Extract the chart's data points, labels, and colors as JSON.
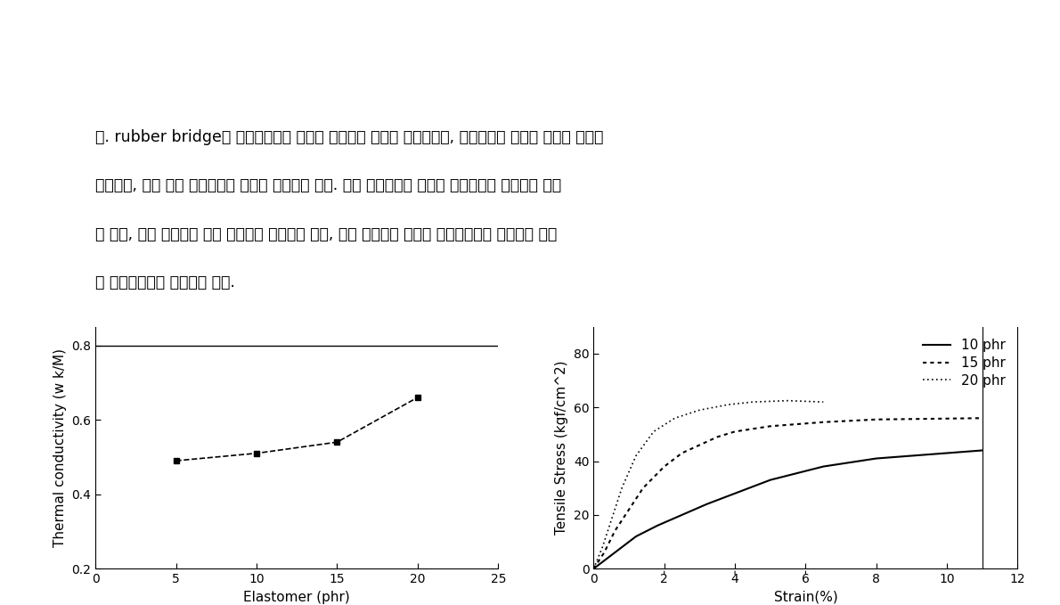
{
  "text_lines": [
    "다. rubber bridge란 엘라스토머의 입자는 내부에서 크랙이 진행될수록, 크랙사이의 개질재 입자는 변형이",
    "일어나고, 변형 후에 엘라스토머 입자가 끓어지게 된다. 이때 엘라스토머 입자가 끓어지는데 에너지가 소요",
    "가 되며, 결국 파괴면에 탄성 에너지를 저장하게 되며, 이는 에폭시가 파괴시 비가역적으로 분산하게 됨으",
    "로 파괴에너지가 높아지게 된다."
  ],
  "left_chart": {
    "x": [
      5,
      10,
      15,
      20
    ],
    "y": [
      0.49,
      0.51,
      0.54,
      0.66
    ],
    "xlabel": "Elastomer (phr)",
    "ylabel": "Thermal conductivity (w k/M)",
    "xlim": [
      0,
      25
    ],
    "ylim": [
      0.2,
      0.85
    ],
    "yticks": [
      0.2,
      0.4,
      0.6,
      0.8
    ],
    "xticks": [
      0,
      5,
      10,
      15,
      20,
      25
    ],
    "line_color": "#000000",
    "marker": "s",
    "markersize": 5,
    "linestyle": "--"
  },
  "right_chart": {
    "xlabel": "Strain(%)",
    "ylabel": "Tensile Stress (kgf/cm^2)",
    "xlim": [
      0,
      12
    ],
    "ylim": [
      0,
      90
    ],
    "yticks": [
      0,
      20,
      40,
      60,
      80
    ],
    "xticks": [
      0,
      2,
      4,
      6,
      8,
      10,
      12
    ],
    "vline_x": 11,
    "series": [
      {
        "label": "10 phr",
        "linestyle": "-",
        "color": "#000000",
        "lw": 1.5,
        "x": [
          0,
          0.4,
          0.8,
          1.2,
          1.8,
          2.5,
          3.2,
          4.0,
          5.0,
          6.5,
          8.0,
          10.0,
          11.0
        ],
        "y": [
          0,
          4,
          8,
          12,
          16,
          20,
          24,
          28,
          33,
          38,
          41,
          43,
          44
        ]
      },
      {
        "label": "15 phr",
        "linestyle": ":",
        "color": "#000000",
        "lw": 1.5,
        "x": [
          0,
          0.3,
          0.6,
          1.0,
          1.4,
          2.0,
          2.5,
          3.0,
          3.5,
          4.0,
          5.0,
          6.5,
          8.0,
          11.0
        ],
        "y": [
          0,
          6,
          14,
          22,
          30,
          38,
          43,
          46,
          49,
          51,
          53,
          54.5,
          55.5,
          56
        ]
      },
      {
        "label": "20 phr",
        "linestyle": "dotted_dense",
        "color": "#000000",
        "lw": 1.2,
        "x": [
          0,
          0.25,
          0.5,
          0.8,
          1.2,
          1.7,
          2.3,
          3.0,
          3.8,
          4.5,
          5.5,
          6.5
        ],
        "y": [
          0,
          8,
          18,
          30,
          42,
          51,
          56,
          59,
          61,
          62,
          62.5,
          62
        ]
      }
    ]
  },
  "bg_color": "#ffffff",
  "text_fontsize": 12.5,
  "axis_fontsize": 11,
  "tick_fontsize": 10,
  "legend_fontsize": 11
}
